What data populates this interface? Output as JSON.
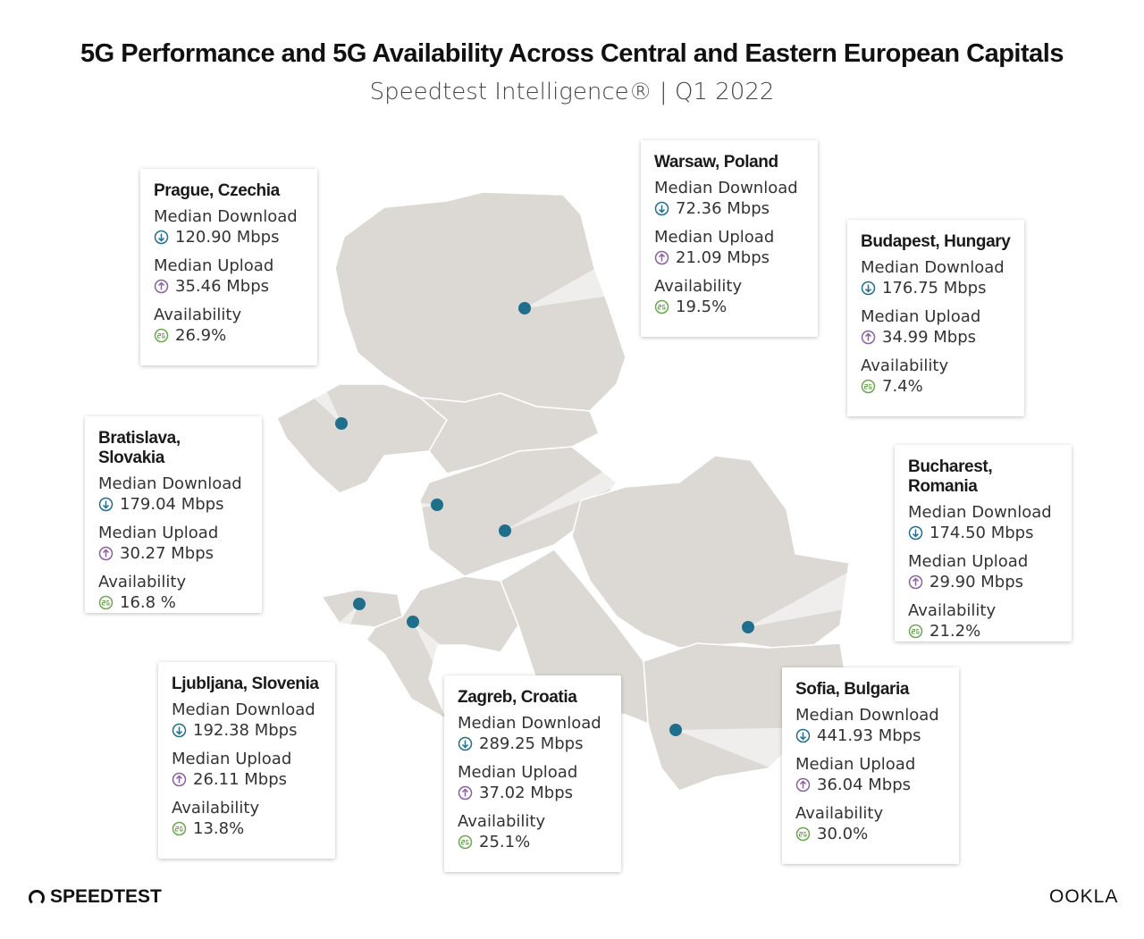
{
  "header": {
    "title": "5G Performance and 5G Availability Across Central and Eastern European Capitals",
    "subtitle": "Speedtest Intelligence® | Q1 2022"
  },
  "metric_labels": [
    "Median Download",
    "Median Upload",
    "Availability"
  ],
  "cities": [
    {
      "name": "Prague, Czechia",
      "download": "120.90 Mbps",
      "upload": "35.46 Mbps",
      "availability": "26.9%"
    },
    {
      "name": "Warsaw, Poland",
      "download": "72.36 Mbps",
      "upload": "21.09 Mbps",
      "availability": "19.5%"
    },
    {
      "name": "Budapest, Hungary",
      "download": "176.75 Mbps",
      "upload": "34.99 Mbps",
      "availability": "7.4%"
    },
    {
      "name": "Bratislava, Slovakia",
      "download": "179.04 Mbps",
      "upload": "30.27 Mbps",
      "availability": "16.8 %"
    },
    {
      "name": "Bucharest, Romania",
      "download": "174.50 Mbps",
      "upload": "29.90 Mbps",
      "availability": "21.2%"
    },
    {
      "name": "Ljubljana, Slovenia",
      "download": "192.38 Mbps",
      "upload": "26.11 Mbps",
      "availability": "13.8%"
    },
    {
      "name": "Zagreb, Croatia",
      "download": "289.25 Mbps",
      "upload": "37.02 Mbps",
      "availability": "25.1%"
    },
    {
      "name": "Sofia, Bulgaria",
      "download": "441.93 Mbps",
      "upload": "36.04 Mbps",
      "availability": "30.0%"
    }
  ],
  "logos": {
    "left": "SPEEDTEST",
    "right": "OOKLA"
  }
}
